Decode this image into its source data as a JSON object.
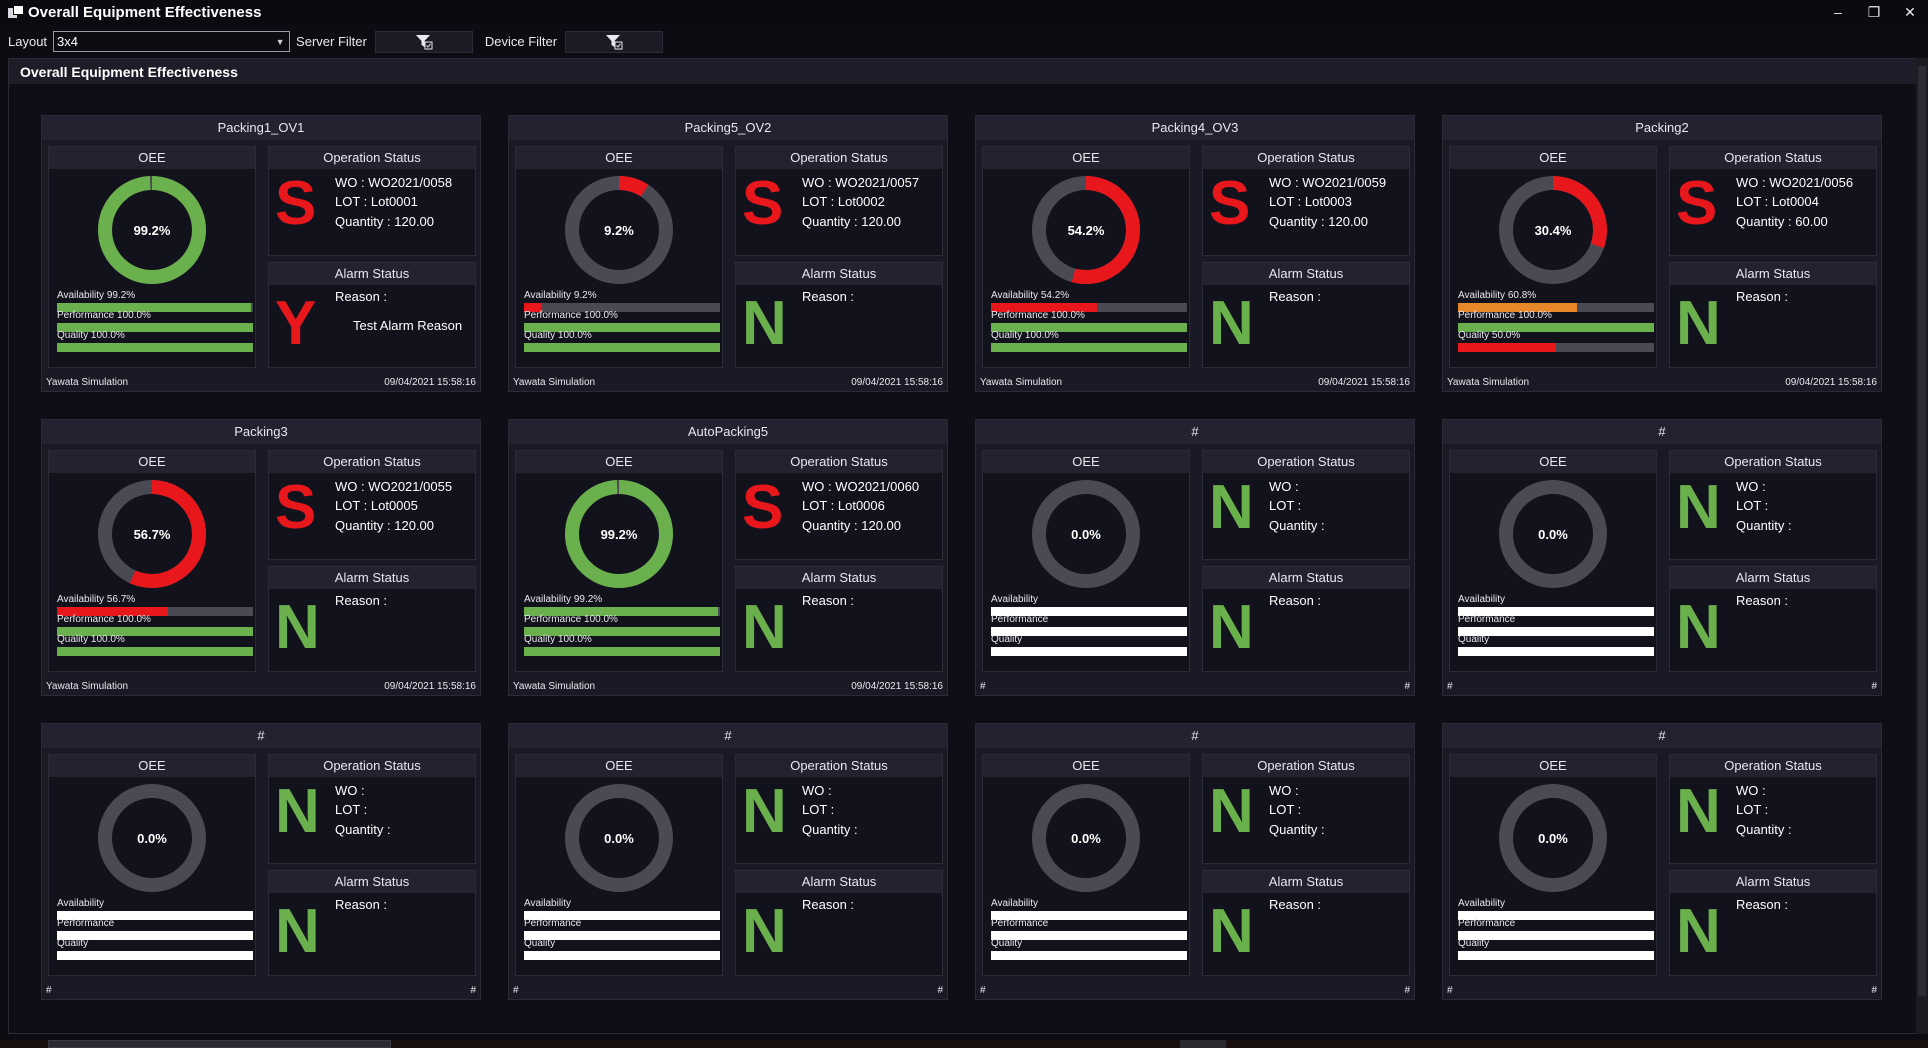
{
  "window": {
    "title": "Overall Equipment Effectiveness",
    "controls": [
      "–",
      "❐",
      "✕"
    ]
  },
  "toolbar": {
    "layout_label": "Layout",
    "layout_value": "3x4",
    "server_filter_label": "Server Filter",
    "device_filter_label": "Device Filter"
  },
  "panel": {
    "title": "Overall Equipment Effectiveness"
  },
  "labels": {
    "oee": "OEE",
    "operation_status": "Operation Status",
    "alarm_status": "Alarm Status",
    "wo": "WO :",
    "lot": "LOT :",
    "quantity": "Quantity :",
    "reason": "Reason :"
  },
  "colors": {
    "green": "#6ab04c",
    "red": "#e8171c",
    "orange": "#e8862a",
    "gray": "#4a4a55",
    "white": "#ffffff"
  },
  "cards": [
    {
      "name": "Packing1_OV1",
      "oee": "99.2%",
      "oee_value": 0.992,
      "ring_color": "green",
      "availability": "Availability 99.2%",
      "avail_value": 0.992,
      "avail_color": "green",
      "performance": "Performance 100.0%",
      "perf_value": 1.0,
      "perf_color": "green",
      "quality": "Quality 100.0%",
      "qual_value": 1.0,
      "qual_color": "green",
      "op_letter": "S",
      "wo": "WO : WO2021/0058",
      "lot": "LOT : Lot0001",
      "quantity": "Quantity : 120.00",
      "alarm_letter": "Y",
      "reason": "Reason :",
      "reason_text": "Test Alarm Reason",
      "source": "Yawata Simulation",
      "timestamp": "09/04/2021 15:58:16"
    },
    {
      "name": "Packing5_OV2",
      "oee": "9.2%",
      "oee_value": 0.092,
      "ring_color": "red",
      "availability": "Availability 9.2%",
      "avail_value": 0.092,
      "avail_color": "red",
      "performance": "Performance 100.0%",
      "perf_value": 1.0,
      "perf_color": "green",
      "quality": "Quality 100.0%",
      "qual_value": 1.0,
      "qual_color": "green",
      "op_letter": "S",
      "wo": "WO : WO2021/0057",
      "lot": "LOT : Lot0002",
      "quantity": "Quantity : 120.00",
      "alarm_letter": "N",
      "reason": "Reason :",
      "reason_text": "",
      "source": "Yawata Simulation",
      "timestamp": "09/04/2021 15:58:16"
    },
    {
      "name": "Packing4_OV3",
      "oee": "54.2%",
      "oee_value": 0.542,
      "ring_color": "red",
      "availability": "Availability 54.2%",
      "avail_value": 0.542,
      "avail_color": "red",
      "performance": "Performance 100.0%",
      "perf_value": 1.0,
      "perf_color": "green",
      "quality": "Quality 100.0%",
      "qual_value": 1.0,
      "qual_color": "green",
      "op_letter": "S",
      "wo": "WO : WO2021/0059",
      "lot": "LOT : Lot0003",
      "quantity": "Quantity : 120.00",
      "alarm_letter": "N",
      "reason": "Reason :",
      "reason_text": "",
      "source": "Yawata Simulation",
      "timestamp": "09/04/2021 15:58:16"
    },
    {
      "name": "Packing2",
      "oee": "30.4%",
      "oee_value": 0.304,
      "ring_color": "red",
      "availability": "Availability 60.8%",
      "avail_value": 0.608,
      "avail_color": "orange",
      "performance": "Performance 100.0%",
      "perf_value": 1.0,
      "perf_color": "green",
      "quality": "Quality 50.0%",
      "qual_value": 0.5,
      "qual_color": "red",
      "op_letter": "S",
      "wo": "WO : WO2021/0056",
      "lot": "LOT : Lot0004",
      "quantity": "Quantity : 60.00",
      "alarm_letter": "N",
      "reason": "Reason :",
      "reason_text": "",
      "source": "Yawata Simulation",
      "timestamp": "09/04/2021 15:58:16"
    },
    {
      "name": "Packing3",
      "oee": "56.7%",
      "oee_value": 0.567,
      "ring_color": "red",
      "availability": "Availability 56.7%",
      "avail_value": 0.567,
      "avail_color": "red",
      "performance": "Performance 100.0%",
      "perf_value": 1.0,
      "perf_color": "green",
      "quality": "Quality 100.0%",
      "qual_value": 1.0,
      "qual_color": "green",
      "op_letter": "S",
      "wo": "WO : WO2021/0055",
      "lot": "LOT : Lot0005",
      "quantity": "Quantity : 120.00",
      "alarm_letter": "N",
      "reason": "Reason :",
      "reason_text": "",
      "source": "Yawata Simulation",
      "timestamp": "09/04/2021 15:58:16"
    },
    {
      "name": "AutoPacking5",
      "oee": "99.2%",
      "oee_value": 0.992,
      "ring_color": "green",
      "availability": "Availability 99.2%",
      "avail_value": 0.992,
      "avail_color": "green",
      "performance": "Performance 100.0%",
      "perf_value": 1.0,
      "perf_color": "green",
      "quality": "Quality 100.0%",
      "qual_value": 1.0,
      "qual_color": "green",
      "op_letter": "S",
      "wo": "WO : WO2021/0060",
      "lot": "LOT : Lot0006",
      "quantity": "Quantity : 120.00",
      "alarm_letter": "N",
      "reason": "Reason :",
      "reason_text": "",
      "source": "Yawata Simulation",
      "timestamp": "09/04/2021 15:58:16"
    },
    {
      "name": "#",
      "oee": "0.0%",
      "oee_value": 0,
      "ring_color": "gray",
      "availability": "Availability",
      "avail_value": 1.0,
      "avail_color": "white",
      "performance": "Performance",
      "perf_value": 1.0,
      "perf_color": "white",
      "quality": "Quality",
      "qual_value": 1.0,
      "qual_color": "white",
      "op_letter": "N",
      "wo": "WO :",
      "lot": "LOT :",
      "quantity": "Quantity :",
      "alarm_letter": "N",
      "reason": "Reason :",
      "reason_text": "",
      "source": "#",
      "timestamp": "#"
    },
    {
      "name": "#",
      "oee": "0.0%",
      "oee_value": 0,
      "ring_color": "gray",
      "availability": "Availability",
      "avail_value": 1.0,
      "avail_color": "white",
      "performance": "Performance",
      "perf_value": 1.0,
      "perf_color": "white",
      "quality": "Quality",
      "qual_value": 1.0,
      "qual_color": "white",
      "op_letter": "N",
      "wo": "WO :",
      "lot": "LOT :",
      "quantity": "Quantity :",
      "alarm_letter": "N",
      "reason": "Reason :",
      "reason_text": "",
      "source": "#",
      "timestamp": "#"
    },
    {
      "name": "#",
      "oee": "0.0%",
      "oee_value": 0,
      "ring_color": "gray",
      "availability": "Availability",
      "avail_value": 1.0,
      "avail_color": "white",
      "performance": "Performance",
      "perf_value": 1.0,
      "perf_color": "white",
      "quality": "Quality",
      "qual_value": 1.0,
      "qual_color": "white",
      "op_letter": "N",
      "wo": "WO :",
      "lot": "LOT :",
      "quantity": "Quantity :",
      "alarm_letter": "N",
      "reason": "Reason :",
      "reason_text": "",
      "source": "#",
      "timestamp": "#"
    },
    {
      "name": "#",
      "oee": "0.0%",
      "oee_value": 0,
      "ring_color": "gray",
      "availability": "Availability",
      "avail_value": 1.0,
      "avail_color": "white",
      "performance": "Performance",
      "perf_value": 1.0,
      "perf_color": "white",
      "quality": "Quality",
      "qual_value": 1.0,
      "qual_color": "white",
      "op_letter": "N",
      "wo": "WO :",
      "lot": "LOT :",
      "quantity": "Quantity :",
      "alarm_letter": "N",
      "reason": "Reason :",
      "reason_text": "",
      "source": "#",
      "timestamp": "#"
    },
    {
      "name": "#",
      "oee": "0.0%",
      "oee_value": 0,
      "ring_color": "gray",
      "availability": "Availability",
      "avail_value": 1.0,
      "avail_color": "white",
      "performance": "Performance",
      "perf_value": 1.0,
      "perf_color": "white",
      "quality": "Quality",
      "qual_value": 1.0,
      "qual_color": "white",
      "op_letter": "N",
      "wo": "WO :",
      "lot": "LOT :",
      "quantity": "Quantity :",
      "alarm_letter": "N",
      "reason": "Reason :",
      "reason_text": "",
      "source": "#",
      "timestamp": "#"
    },
    {
      "name": "#",
      "oee": "0.0%",
      "oee_value": 0,
      "ring_color": "gray",
      "availability": "Availability",
      "avail_value": 1.0,
      "avail_color": "white",
      "performance": "Performance",
      "perf_value": 1.0,
      "perf_color": "white",
      "quality": "Quality",
      "qual_value": 1.0,
      "qual_color": "white",
      "op_letter": "N",
      "wo": "WO :",
      "lot": "LOT :",
      "quantity": "Quantity :",
      "alarm_letter": "N",
      "reason": "Reason :",
      "reason_text": "",
      "source": "#",
      "timestamp": "#"
    }
  ]
}
